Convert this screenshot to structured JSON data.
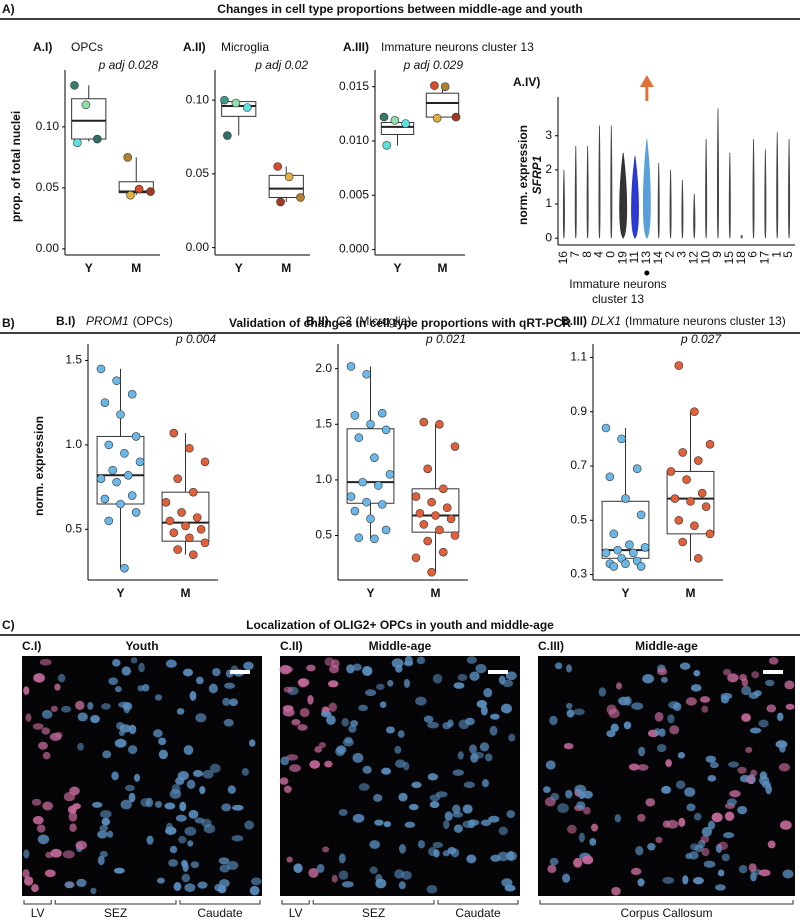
{
  "sections": [
    {
      "label": "A)",
      "title": "Changes in cell type proportions between middle-age and youth"
    },
    {
      "label": "B)",
      "title": "Validation of changes in cell type proportions with qRT-PCR"
    },
    {
      "label": "C)",
      "title": "Localization of OLIG2+ OPCs in youth and middle-age"
    }
  ],
  "chart_data": [
    {
      "type": "box",
      "label": "A.I)",
      "title": "OPCs",
      "annotation": "p adj 0.028",
      "y_label": "prop. of total nuclei",
      "categories": [
        "Y",
        "M"
      ],
      "ylim": [
        -0.005,
        0.14
      ],
      "yticks": [
        {
          "value": 0,
          "label": "0.00"
        },
        0.05,
        {
          "value": 0.1,
          "label": "0.10"
        }
      ],
      "boxes": [
        {
          "min": 0.088,
          "q1": 0.09,
          "median": 0.105,
          "q3": 0.123,
          "max": 0.134,
          "points": [
            0.134,
            0.118,
            0.09,
            0.087
          ],
          "point_colors": [
            "#3a7a6e",
            "#8ee0a8",
            "#2f6f66",
            "#5ee0e0"
          ]
        },
        {
          "min": 0.044,
          "q1": 0.046,
          "median": 0.047,
          "q3": 0.055,
          "max": 0.075,
          "points": [
            0.075,
            0.049,
            0.047,
            0.044
          ],
          "point_colors": [
            "#b08030",
            "#d84b2a",
            "#a03a20",
            "#e0b040"
          ]
        }
      ]
    },
    {
      "type": "box",
      "label": "A.II)",
      "title": "Microglia",
      "annotation": "p adj 0.02",
      "categories": [
        "Y",
        "M"
      ],
      "ylim": [
        -0.005,
        0.115
      ],
      "yticks": [
        {
          "value": 0,
          "label": "0.00"
        },
        0.05,
        {
          "value": 0.1,
          "label": "0.10"
        }
      ],
      "boxes": [
        {
          "min": 0.076,
          "q1": 0.089,
          "median": 0.096,
          "q3": 0.099,
          "max": 0.1,
          "points": [
            0.1,
            0.098,
            0.095,
            0.076
          ],
          "point_colors": [
            "#3a9a8a",
            "#8ee0a8",
            "#5ee0e0",
            "#2f6f66"
          ]
        },
        {
          "min": 0.031,
          "q1": 0.034,
          "median": 0.04,
          "q3": 0.049,
          "max": 0.055,
          "points": [
            0.055,
            0.048,
            0.034,
            0.031
          ],
          "point_colors": [
            "#d84b2a",
            "#e0b040",
            "#b08030",
            "#a03a20"
          ]
        }
      ]
    },
    {
      "type": "box",
      "label": "A.III)",
      "title": "Immature neurons cluster 13",
      "annotation": "p adj 0.029",
      "categories": [
        "Y",
        "M"
      ],
      "ylim": [
        -0.0005,
        0.0158
      ],
      "yticks": [
        {
          "value": 0,
          "label": "0.000"
        },
        0.005,
        {
          "value": 0.01,
          "label": "0.010"
        },
        0.015
      ],
      "boxes": [
        {
          "min": 0.0096,
          "q1": 0.0106,
          "median": 0.0113,
          "q3": 0.0117,
          "max": 0.0122,
          "points": [
            0.0122,
            0.0119,
            0.0116,
            0.0096
          ],
          "point_colors": [
            "#3a7a6e",
            "#8ee0a8",
            "#5ee0e0",
            "#5ee0e0"
          ]
        },
        {
          "min": 0.0122,
          "q1": 0.0122,
          "median": 0.0135,
          "q3": 0.0144,
          "max": 0.0151,
          "points": [
            0.0151,
            0.015,
            0.0122,
            0.0121
          ],
          "point_colors": [
            "#d84b2a",
            "#b08030",
            "#a03a20",
            "#e0b040"
          ]
        }
      ]
    },
    {
      "type": "violin",
      "label": "A.IV)",
      "y_label": "norm. expression",
      "gene": "SFRP1",
      "x_label": [
        "Immature neurons",
        "cluster 13"
      ],
      "categories": [
        "16",
        "7",
        "8",
        "4",
        "0",
        "19",
        "11",
        "13",
        "14",
        "2",
        "3",
        "12",
        "10",
        "9",
        "15",
        "18",
        "6",
        "17",
        "1",
        "5"
      ],
      "values": [
        2.0,
        2.7,
        2.7,
        3.3,
        3.3,
        2.5,
        2.4,
        2.9,
        2.2,
        2.0,
        1.7,
        1.3,
        2.9,
        3.8,
        2.5,
        0,
        2.9,
        2.6,
        3.1,
        2.9
      ],
      "color": "#444444",
      "colors": [
        "#444444",
        "#444444",
        "#444444",
        "#444444",
        "#444444",
        "#333333",
        "#2b3bd0",
        "#5aa0d8",
        "#444444",
        "#444444",
        "#444444",
        "#444444",
        "#444444",
        "#444444",
        "#444444",
        "#444444",
        "#444444",
        "#444444",
        "#444444",
        "#444444"
      ],
      "ylim": [
        -0.2,
        3.9
      ],
      "yticks": [
        0,
        1,
        2,
        3
      ]
    },
    {
      "type": "box",
      "label": "B.I)",
      "gene": "PROM1",
      "title": "(OPCs)",
      "annotation": "p 0.004",
      "y_label": "norm. expression",
      "categories": [
        "Y",
        "M"
      ],
      "ylim": [
        0.2,
        1.55
      ],
      "yticks": [
        0.5,
        {
          "value": 1,
          "label": "1.0"
        },
        1.5
      ],
      "boxes": [
        {
          "min": 0.27,
          "q1": 0.65,
          "median": 0.82,
          "q3": 1.05,
          "max": 1.45,
          "color": "#6bb8e8",
          "points": [
            1.45,
            1.38,
            1.3,
            1.25,
            1.18,
            1.05,
            1.0,
            0.95,
            0.9,
            0.85,
            0.82,
            0.8,
            0.78,
            0.7,
            0.68,
            0.65,
            0.6,
            0.55,
            0.27
          ]
        },
        {
          "min": 0.35,
          "q1": 0.43,
          "median": 0.54,
          "q3": 0.72,
          "max": 1.07,
          "color": "#e0603a",
          "points": [
            1.07,
            0.98,
            0.9,
            0.8,
            0.72,
            0.66,
            0.6,
            0.57,
            0.55,
            0.52,
            0.5,
            0.48,
            0.45,
            0.42,
            0.38,
            0.35
          ]
        }
      ]
    },
    {
      "type": "box",
      "label": "B.II)",
      "gene": "C3",
      "title": "(Microglia)",
      "annotation": "p 0.021",
      "categories": [
        "Y",
        "M"
      ],
      "ylim": [
        0.1,
        2.15
      ],
      "yticks": [
        0.5,
        {
          "value": 1,
          "label": "1.0"
        },
        1.5,
        {
          "value": 2,
          "label": "2.0"
        }
      ],
      "boxes": [
        {
          "min": 0.47,
          "q1": 0.79,
          "median": 0.98,
          "q3": 1.46,
          "max": 2.02,
          "color": "#6bb8e8",
          "points": [
            2.02,
            1.95,
            1.6,
            1.58,
            1.5,
            1.45,
            1.38,
            1.2,
            1.05,
            0.98,
            0.95,
            0.85,
            0.8,
            0.78,
            0.72,
            0.65,
            0.55,
            0.48,
            0.47
          ]
        },
        {
          "min": 0.17,
          "q1": 0.53,
          "median": 0.68,
          "q3": 0.92,
          "max": 1.5,
          "color": "#e0603a",
          "points": [
            1.52,
            1.5,
            1.3,
            1.1,
            0.92,
            0.85,
            0.8,
            0.75,
            0.7,
            0.68,
            0.65,
            0.6,
            0.55,
            0.5,
            0.45,
            0.35,
            0.3,
            0.17
          ]
        }
      ]
    },
    {
      "type": "box",
      "label": "B.III)",
      "gene": "DLX1",
      "title": "(Immature neurons cluster 13)",
      "annotation": "p 0.027",
      "categories": [
        "Y",
        "M"
      ],
      "ylim": [
        0.28,
        1.12
      ],
      "yticks": [
        0.3,
        0.5,
        0.7,
        0.9,
        1.1
      ],
      "boxes": [
        {
          "min": 0.33,
          "q1": 0.36,
          "median": 0.39,
          "q3": 0.57,
          "max": 0.84,
          "color": "#6bb8e8",
          "points": [
            0.84,
            0.8,
            0.69,
            0.66,
            0.58,
            0.52,
            0.45,
            0.41,
            0.4,
            0.39,
            0.38,
            0.38,
            0.36,
            0.35,
            0.34,
            0.34,
            0.33,
            0.33
          ]
        },
        {
          "min": 0.35,
          "q1": 0.45,
          "median": 0.58,
          "q3": 0.68,
          "max": 0.9,
          "color": "#e0603a",
          "points": [
            1.07,
            0.9,
            0.78,
            0.75,
            0.72,
            0.68,
            0.65,
            0.6,
            0.58,
            0.57,
            0.55,
            0.5,
            0.48,
            0.45,
            0.42,
            0.36
          ]
        }
      ]
    }
  ],
  "images": [
    {
      "label": "C.I)",
      "title": "Youth",
      "regions": [
        "LV",
        "SEZ",
        "Caudate"
      ]
    },
    {
      "label": "C.II)",
      "title": "Middle-age",
      "regions": [
        "LV",
        "SEZ",
        "Caudate"
      ]
    },
    {
      "label": "C.III)",
      "title": "Middle-age",
      "regions": [
        "Corpus Callosum"
      ]
    }
  ]
}
